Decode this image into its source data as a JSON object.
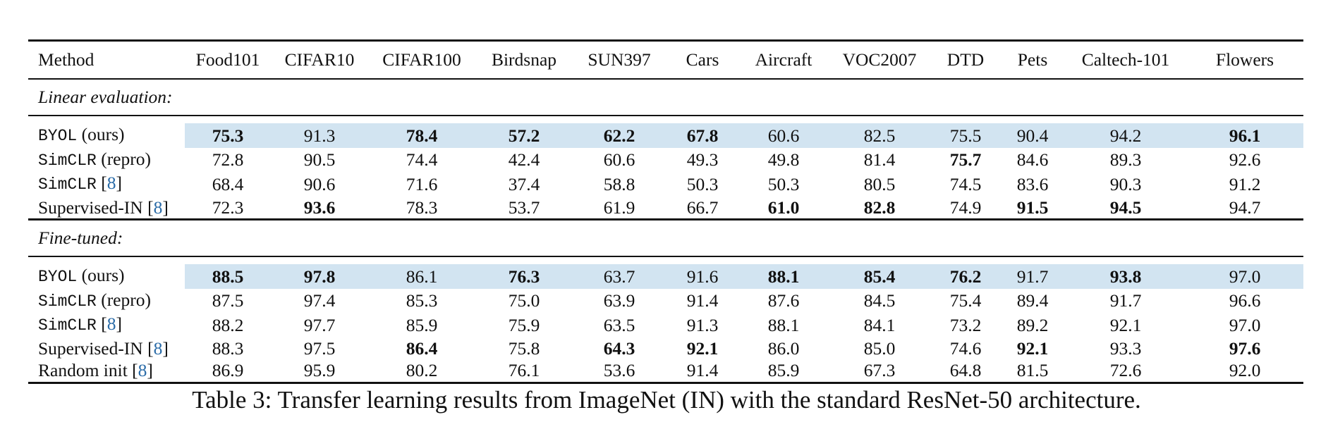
{
  "columns": [
    "Method",
    "Food101",
    "CIFAR10",
    "CIFAR100",
    "Birdsnap",
    "SUN397",
    "Cars",
    "Aircraft",
    "VOC2007",
    "DTD",
    "Pets",
    "Caltech-101",
    "Flowers"
  ],
  "highlight_color": "#d2e4f1",
  "link_color": "#2b6ca8",
  "sections": [
    {
      "title": "Linear evaluation:",
      "rows": [
        {
          "m1": "BYOL",
          "m2": "(ours)",
          "cite": "",
          "highlight": true,
          "values": [
            "75.3",
            "91.3",
            "78.4",
            "57.2",
            "62.2",
            "67.8",
            "60.6",
            "82.5",
            "75.5",
            "90.4",
            "94.2",
            "96.1"
          ],
          "bold": [
            true,
            false,
            true,
            true,
            true,
            true,
            false,
            false,
            false,
            false,
            false,
            true
          ]
        },
        {
          "m1": "SimCLR",
          "m2": "(repro)",
          "cite": "",
          "highlight": false,
          "values": [
            "72.8",
            "90.5",
            "74.4",
            "42.4",
            "60.6",
            "49.3",
            "49.8",
            "81.4",
            "75.7",
            "84.6",
            "89.3",
            "92.6"
          ],
          "bold": [
            false,
            false,
            false,
            false,
            false,
            false,
            false,
            false,
            true,
            false,
            false,
            false
          ]
        },
        {
          "m1": "SimCLR",
          "m2": "",
          "cite": "8",
          "highlight": false,
          "values": [
            "68.4",
            "90.6",
            "71.6",
            "37.4",
            "58.8",
            "50.3",
            "50.3",
            "80.5",
            "74.5",
            "83.6",
            "90.3",
            "91.2"
          ],
          "bold": [
            false,
            false,
            false,
            false,
            false,
            false,
            false,
            false,
            false,
            false,
            false,
            false
          ]
        },
        {
          "m1": "",
          "m2": "Supervised-IN",
          "cite": "8",
          "highlight": false,
          "values": [
            "72.3",
            "93.6",
            "78.3",
            "53.7",
            "61.9",
            "66.7",
            "61.0",
            "82.8",
            "74.9",
            "91.5",
            "94.5",
            "94.7"
          ],
          "bold": [
            false,
            true,
            false,
            false,
            false,
            false,
            true,
            true,
            false,
            true,
            true,
            false
          ]
        }
      ]
    },
    {
      "title": "Fine-tuned:",
      "rows": [
        {
          "m1": "BYOL",
          "m2": "(ours)",
          "cite": "",
          "highlight": true,
          "values": [
            "88.5",
            "97.8",
            "86.1",
            "76.3",
            "63.7",
            "91.6",
            "88.1",
            "85.4",
            "76.2",
            "91.7",
            "93.8",
            "97.0"
          ],
          "bold": [
            true,
            true,
            false,
            true,
            false,
            false,
            true,
            true,
            true,
            false,
            true,
            false
          ]
        },
        {
          "m1": "SimCLR",
          "m2": "(repro)",
          "cite": "",
          "highlight": false,
          "values": [
            "87.5",
            "97.4",
            "85.3",
            "75.0",
            "63.9",
            "91.4",
            "87.6",
            "84.5",
            "75.4",
            "89.4",
            "91.7",
            "96.6"
          ],
          "bold": [
            false,
            false,
            false,
            false,
            false,
            false,
            false,
            false,
            false,
            false,
            false,
            false
          ]
        },
        {
          "m1": "SimCLR",
          "m2": "",
          "cite": "8",
          "highlight": false,
          "values": [
            "88.2",
            "97.7",
            "85.9",
            "75.9",
            "63.5",
            "91.3",
            "88.1",
            "84.1",
            "73.2",
            "89.2",
            "92.1",
            "97.0"
          ],
          "bold": [
            false,
            false,
            false,
            false,
            false,
            false,
            false,
            false,
            false,
            false,
            false,
            false
          ]
        },
        {
          "m1": "",
          "m2": "Supervised-IN",
          "cite": "8",
          "highlight": false,
          "values": [
            "88.3",
            "97.5",
            "86.4",
            "75.8",
            "64.3",
            "92.1",
            "86.0",
            "85.0",
            "74.6",
            "92.1",
            "93.3",
            "97.6"
          ],
          "bold": [
            false,
            false,
            true,
            false,
            true,
            true,
            false,
            false,
            false,
            true,
            false,
            true
          ]
        },
        {
          "m1": "",
          "m2": "Random init",
          "cite": "8",
          "highlight": false,
          "values": [
            "86.9",
            "95.9",
            "80.2",
            "76.1",
            "53.6",
            "91.4",
            "85.9",
            "67.3",
            "64.8",
            "81.5",
            "72.6",
            "92.0"
          ],
          "bold": [
            false,
            false,
            false,
            false,
            false,
            false,
            false,
            false,
            false,
            false,
            false,
            false
          ]
        }
      ]
    }
  ],
  "caption": "Table 3: Transfer learning results from ImageNet (IN) with the standard ResNet-50 architecture."
}
